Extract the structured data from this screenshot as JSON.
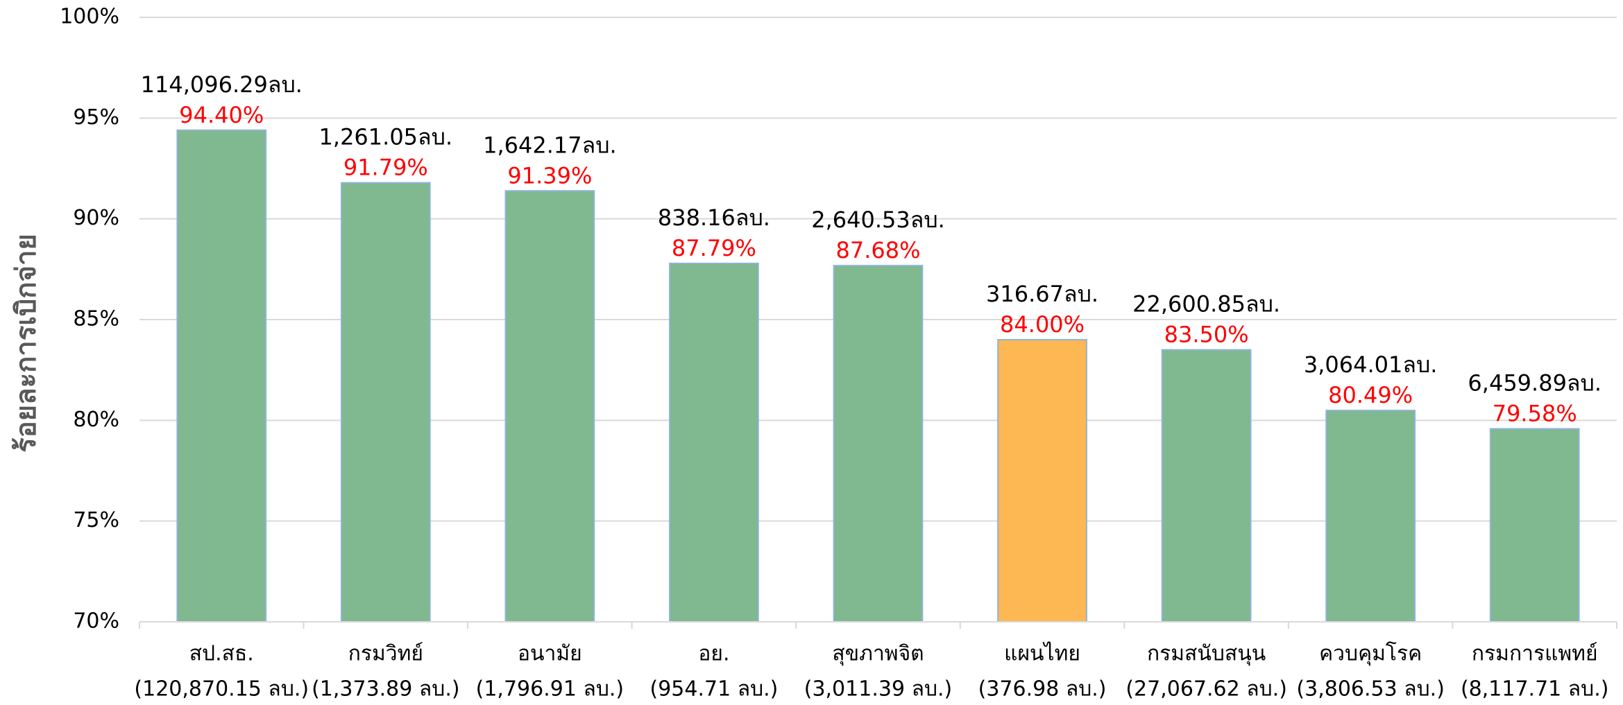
{
  "chart_data": {
    "type": "bar",
    "y_axis_label": "ร้อยละการเบิกจ่าย",
    "categories": [
      "สป.สธ.",
      "กรมวิทย์",
      "อนามัย",
      "อย.",
      "สุขภาพจิต",
      "แผนไทย",
      "กรมสนับสนุน",
      "ควบคุมโรค",
      "กรมการแพทย์"
    ],
    "category_budgets": [
      "(120,870.15 ลบ.)",
      "(1,373.89 ลบ.)",
      "(1,796.91 ลบ.)",
      "(954.71 ลบ.)",
      "(3,011.39 ลบ.)",
      "(376.98 ลบ.)",
      "(27,067.62 ลบ.)",
      "(3,806.53 ลบ.)",
      "(8,117.71 ลบ.)"
    ],
    "values": [
      94.4,
      91.79,
      91.39,
      87.79,
      87.68,
      84.0,
      83.5,
      80.49,
      79.58
    ],
    "value_labels": [
      "94.40%",
      "91.79%",
      "91.39%",
      "87.79%",
      "87.68%",
      "84.00%",
      "83.50%",
      "80.49%",
      "79.58%"
    ],
    "amount_labels": [
      "114,096.29ลบ.",
      "1,261.05ลบ.",
      "1,642.17ลบ.",
      "838.16ลบ.",
      "2,640.53ลบ.",
      "316.67ลบ.",
      "22,600.85ลบ.",
      "3,064.01ลบ.",
      "6,459.89ลบ."
    ],
    "colors": [
      "#80b890",
      "#80b890",
      "#80b890",
      "#80b890",
      "#80b890",
      "#fdb753",
      "#80b890",
      "#80b890",
      "#80b890"
    ],
    "ylim": [
      70,
      100
    ],
    "yticks": [
      {
        "value": 70,
        "label": "70%"
      },
      {
        "value": 75,
        "label": "75%"
      },
      {
        "value": 80,
        "label": "80%"
      },
      {
        "value": 85,
        "label": "85%"
      },
      {
        "value": 90,
        "label": "90%"
      },
      {
        "value": 95,
        "label": "95%"
      },
      {
        "value": 100,
        "label": "100%"
      }
    ],
    "grid": true
  }
}
